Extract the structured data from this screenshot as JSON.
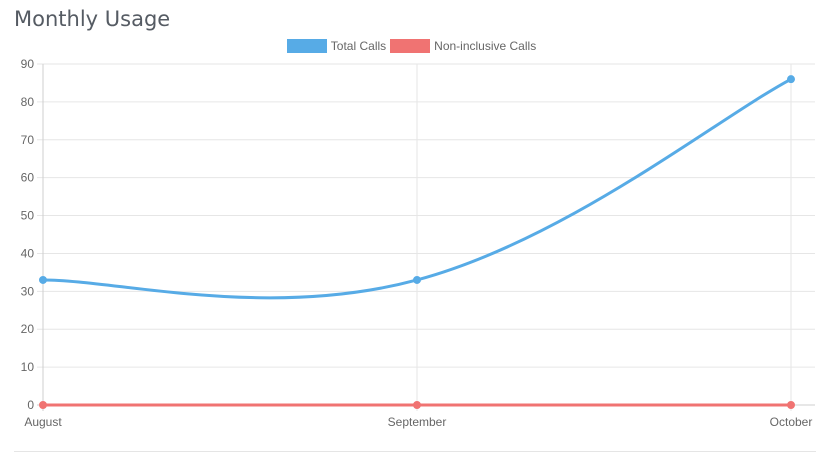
{
  "panel": {
    "title": "Monthly Usage"
  },
  "chart_data": {
    "type": "line",
    "categories": [
      "August",
      "September",
      "October"
    ],
    "series": [
      {
        "name": "Total Calls",
        "values": [
          33,
          33,
          86
        ],
        "color": "#57abe6"
      },
      {
        "name": "Non-inclusive Calls",
        "values": [
          0,
          0,
          0
        ],
        "color": "#f07372"
      }
    ],
    "ylim": [
      0,
      90
    ],
    "yticks": [
      0,
      10,
      20,
      30,
      40,
      50,
      60,
      70,
      80,
      90
    ],
    "grid": true,
    "legend_position": "top-center",
    "xlabel": "",
    "ylabel": ""
  }
}
